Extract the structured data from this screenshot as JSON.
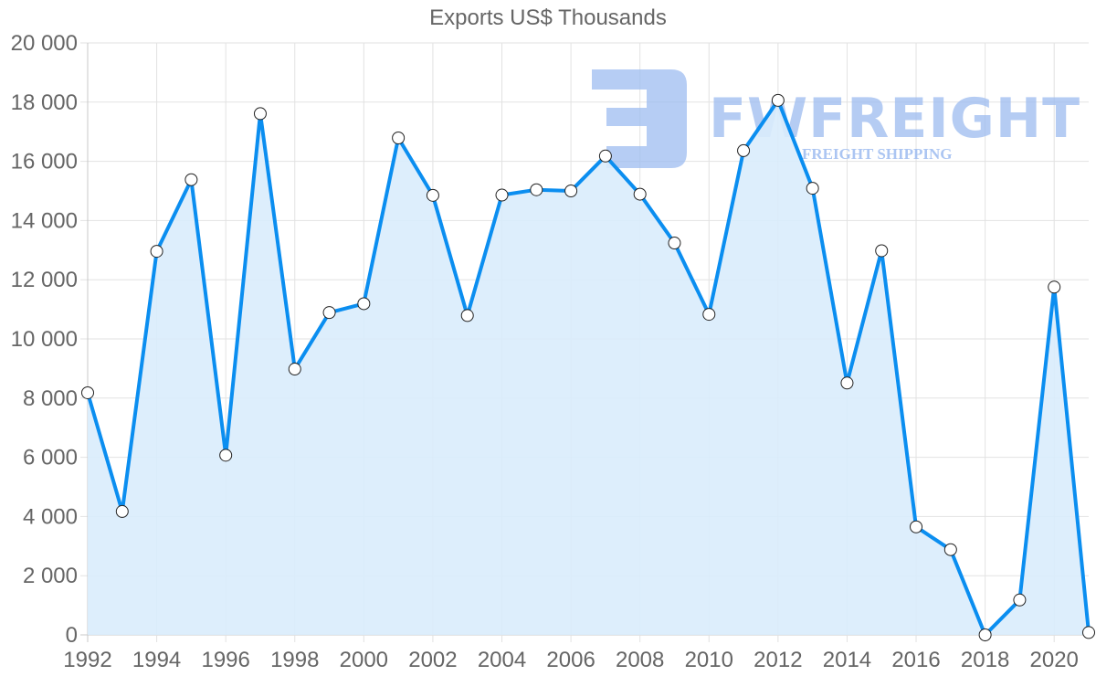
{
  "chart_data": {
    "type": "line",
    "title": "Exports US$ Thousands",
    "xlabel": "",
    "ylabel": "",
    "x": [
      1992,
      1993,
      1994,
      1995,
      1996,
      1997,
      1998,
      1999,
      2000,
      2001,
      2002,
      2003,
      2004,
      2005,
      2006,
      2007,
      2008,
      2009,
      2010,
      2011,
      2012,
      2013,
      2014,
      2015,
      2016,
      2017,
      2018,
      2019,
      2020,
      2021
    ],
    "series": [
      {
        "name": "Exports US$ Thousands",
        "color": "#0b8ef0",
        "fill": "#d9ecfc",
        "values": [
          8180,
          4170,
          12960,
          15380,
          6070,
          17610,
          8980,
          10890,
          11190,
          16790,
          14850,
          10790,
          14860,
          15040,
          15000,
          16180,
          14890,
          13240,
          10830,
          16360,
          18060,
          15090,
          8510,
          12980,
          3650,
          2880,
          0,
          1180,
          11750,
          80
        ]
      }
    ],
    "ylim": [
      0,
      20000
    ],
    "xlim": [
      1992,
      2021
    ],
    "y_ticks": [
      "0",
      "2 000",
      "4 000",
      "6 000",
      "8 000",
      "10 000",
      "12 000",
      "14 000",
      "16 000",
      "18 000",
      "20 000"
    ],
    "x_ticks": [
      "1992",
      "1994",
      "1996",
      "1998",
      "2000",
      "2002",
      "2004",
      "2006",
      "2008",
      "2010",
      "2012",
      "2014",
      "2016",
      "2018",
      "2020"
    ],
    "grid": true,
    "legend": "none",
    "area_fill": true
  },
  "watermark": {
    "brand": "FWFREIGHT",
    "tagline": "FREIGHT SHIPPING",
    "color": "#9dbcf0"
  }
}
